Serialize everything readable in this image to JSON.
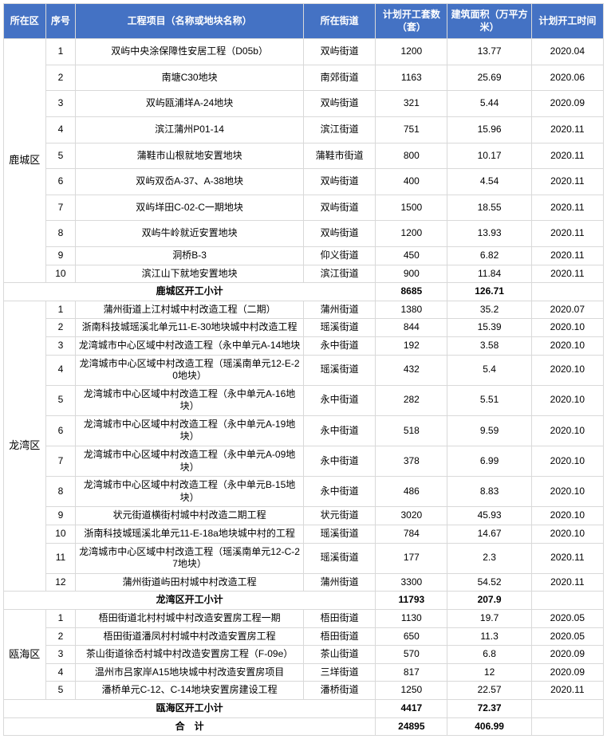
{
  "colors": {
    "header_bg": "#4472c4",
    "header_fg": "#ffffff",
    "border": "#d9d9d9",
    "text": "#000000",
    "watermark": "#e8eef5"
  },
  "headers": {
    "district": "所在区",
    "idx": "序号",
    "project": "工程项目（名称或地块名称）",
    "street": "所在街道",
    "units": "计划开工套数（套）",
    "area": "建筑面积（万平方米）",
    "time": "计划开工时间"
  },
  "districts": [
    {
      "name": "鹿城区",
      "subtotal_label": "鹿城区开工小计",
      "subtotal_units": "8685",
      "subtotal_area": "126.71",
      "rows": [
        {
          "idx": "1",
          "project": "双屿中央涂保障性安居工程（D05b）",
          "street": "双屿街道",
          "units": "1200",
          "area": "13.77",
          "time": "2020.04",
          "tall": true
        },
        {
          "idx": "2",
          "project": "南塘C30地块",
          "street": "南郊街道",
          "units": "1163",
          "area": "25.69",
          "time": "2020.06",
          "tall": true
        },
        {
          "idx": "3",
          "project": "双屿瓯浦垟A-24地块",
          "street": "双屿街道",
          "units": "321",
          "area": "5.44",
          "time": "2020.09",
          "tall": true
        },
        {
          "idx": "4",
          "project": "滨江蒲州P01-14",
          "street": "滨江街道",
          "units": "751",
          "area": "15.96",
          "time": "2020.11",
          "tall": true
        },
        {
          "idx": "5",
          "project": "蒲鞋市山根就地安置地块",
          "street": "蒲鞋市街道",
          "units": "800",
          "area": "10.17",
          "time": "2020.11",
          "tall": true
        },
        {
          "idx": "6",
          "project": "双屿双岙A-37、A-38地块",
          "street": "双屿街道",
          "units": "400",
          "area": "4.54",
          "time": "2020.11",
          "tall": true
        },
        {
          "idx": "7",
          "project": "双屿垟田C-02-C一期地块",
          "street": "双屿街道",
          "units": "1500",
          "area": "18.55",
          "time": "2020.11",
          "tall": true
        },
        {
          "idx": "8",
          "project": "双屿牛岭就近安置地块",
          "street": "双屿街道",
          "units": "1200",
          "area": "13.93",
          "time": "2020.11",
          "tall": true
        },
        {
          "idx": "9",
          "project": "洞桥B-3",
          "street": "仰义街道",
          "units": "450",
          "area": "6.82",
          "time": "2020.11"
        },
        {
          "idx": "10",
          "project": "滨江山下就地安置地块",
          "street": "滨江街道",
          "units": "900",
          "area": "11.84",
          "time": "2020.11"
        }
      ]
    },
    {
      "name": "龙湾区",
      "subtotal_label": "龙湾区开工小计",
      "subtotal_units": "11793",
      "subtotal_area": "207.9",
      "rows": [
        {
          "idx": "1",
          "project": "蒲州街道上江村城中村改造工程（二期）",
          "street": "蒲州街道",
          "units": "1380",
          "area": "35.2",
          "time": "2020.07"
        },
        {
          "idx": "2",
          "project": "浙南科技城瑶溪北单元11-E-30地块城中村改造工程",
          "street": "瑶溪街道",
          "units": "844",
          "area": "15.39",
          "time": "2020.10"
        },
        {
          "idx": "3",
          "project": "龙湾城市中心区域中村改造工程（永中单元A-14地块",
          "street": "永中街道",
          "units": "192",
          "area": "3.58",
          "time": "2020.10"
        },
        {
          "idx": "4",
          "project": "龙湾城市中心区域中村改造工程（瑶溪南单元12-E-20地块）",
          "street": "瑶溪街道",
          "units": "432",
          "area": "5.4",
          "time": "2020.10"
        },
        {
          "idx": "5",
          "project": "龙湾城市中心区域中村改造工程（永中单元A-16地块）",
          "street": "永中街道",
          "units": "282",
          "area": "5.51",
          "time": "2020.10"
        },
        {
          "idx": "6",
          "project": "龙湾城市中心区域中村改造工程（永中单元A-19地块）",
          "street": "永中街道",
          "units": "518",
          "area": "9.59",
          "time": "2020.10"
        },
        {
          "idx": "7",
          "project": "龙湾城市中心区域中村改造工程（永中单元A-09地块）",
          "street": "永中街道",
          "units": "378",
          "area": "6.99",
          "time": "2020.10"
        },
        {
          "idx": "8",
          "project": "龙湾城市中心区域中村改造工程（永中单元B-15地块）",
          "street": "永中街道",
          "units": "486",
          "area": "8.83",
          "time": "2020.10"
        },
        {
          "idx": "9",
          "project": "状元街道横街村城中村改造二期工程",
          "street": "状元街道",
          "units": "3020",
          "area": "45.93",
          "time": "2020.10"
        },
        {
          "idx": "10",
          "project": "浙南科技城瑶溪北单元11-E-18a地块城中村的工程",
          "street": "瑶溪街道",
          "units": "784",
          "area": "14.67",
          "time": "2020.10"
        },
        {
          "idx": "11",
          "project": "龙湾城市中心区域中村改造工程（瑶溪南单元12-C-27地块）",
          "street": "瑶溪街道",
          "units": "177",
          "area": "2.3",
          "time": "2020.11"
        },
        {
          "idx": "12",
          "project": "蒲州街道屿田村城中村改造工程",
          "street": "蒲州街道",
          "units": "3300",
          "area": "54.52",
          "time": "2020.11"
        }
      ]
    },
    {
      "name": "瓯海区",
      "subtotal_label": "瓯海区开工小计",
      "subtotal_units": "4417",
      "subtotal_area": "72.37",
      "rows": [
        {
          "idx": "1",
          "project": "梧田街道北村村城中村改造安置房工程一期",
          "street": "梧田街道",
          "units": "1130",
          "area": "19.7",
          "time": "2020.05"
        },
        {
          "idx": "2",
          "project": "梧田街道潘凤村村城中村改造安置房工程",
          "street": "梧田街道",
          "units": "650",
          "area": "11.3",
          "time": "2020.05"
        },
        {
          "idx": "3",
          "project": "茶山街道徐岙村城中村改造安置房工程（F-09e）",
          "street": "茶山街道",
          "units": "570",
          "area": "6.8",
          "time": "2020.09"
        },
        {
          "idx": "4",
          "project": "温州市吕家岸A15地块城中村改造安置房项目",
          "street": "三垟街道",
          "units": "817",
          "area": "12",
          "time": "2020.09"
        },
        {
          "idx": "5",
          "project": "潘桥单元C-12、C-14地块安置房建设工程",
          "street": "潘桥街道",
          "units": "1250",
          "area": "22.57",
          "time": "2020.11"
        }
      ]
    }
  ],
  "grand_total": {
    "label": "合　计",
    "units": "24895",
    "area": "406.99"
  }
}
